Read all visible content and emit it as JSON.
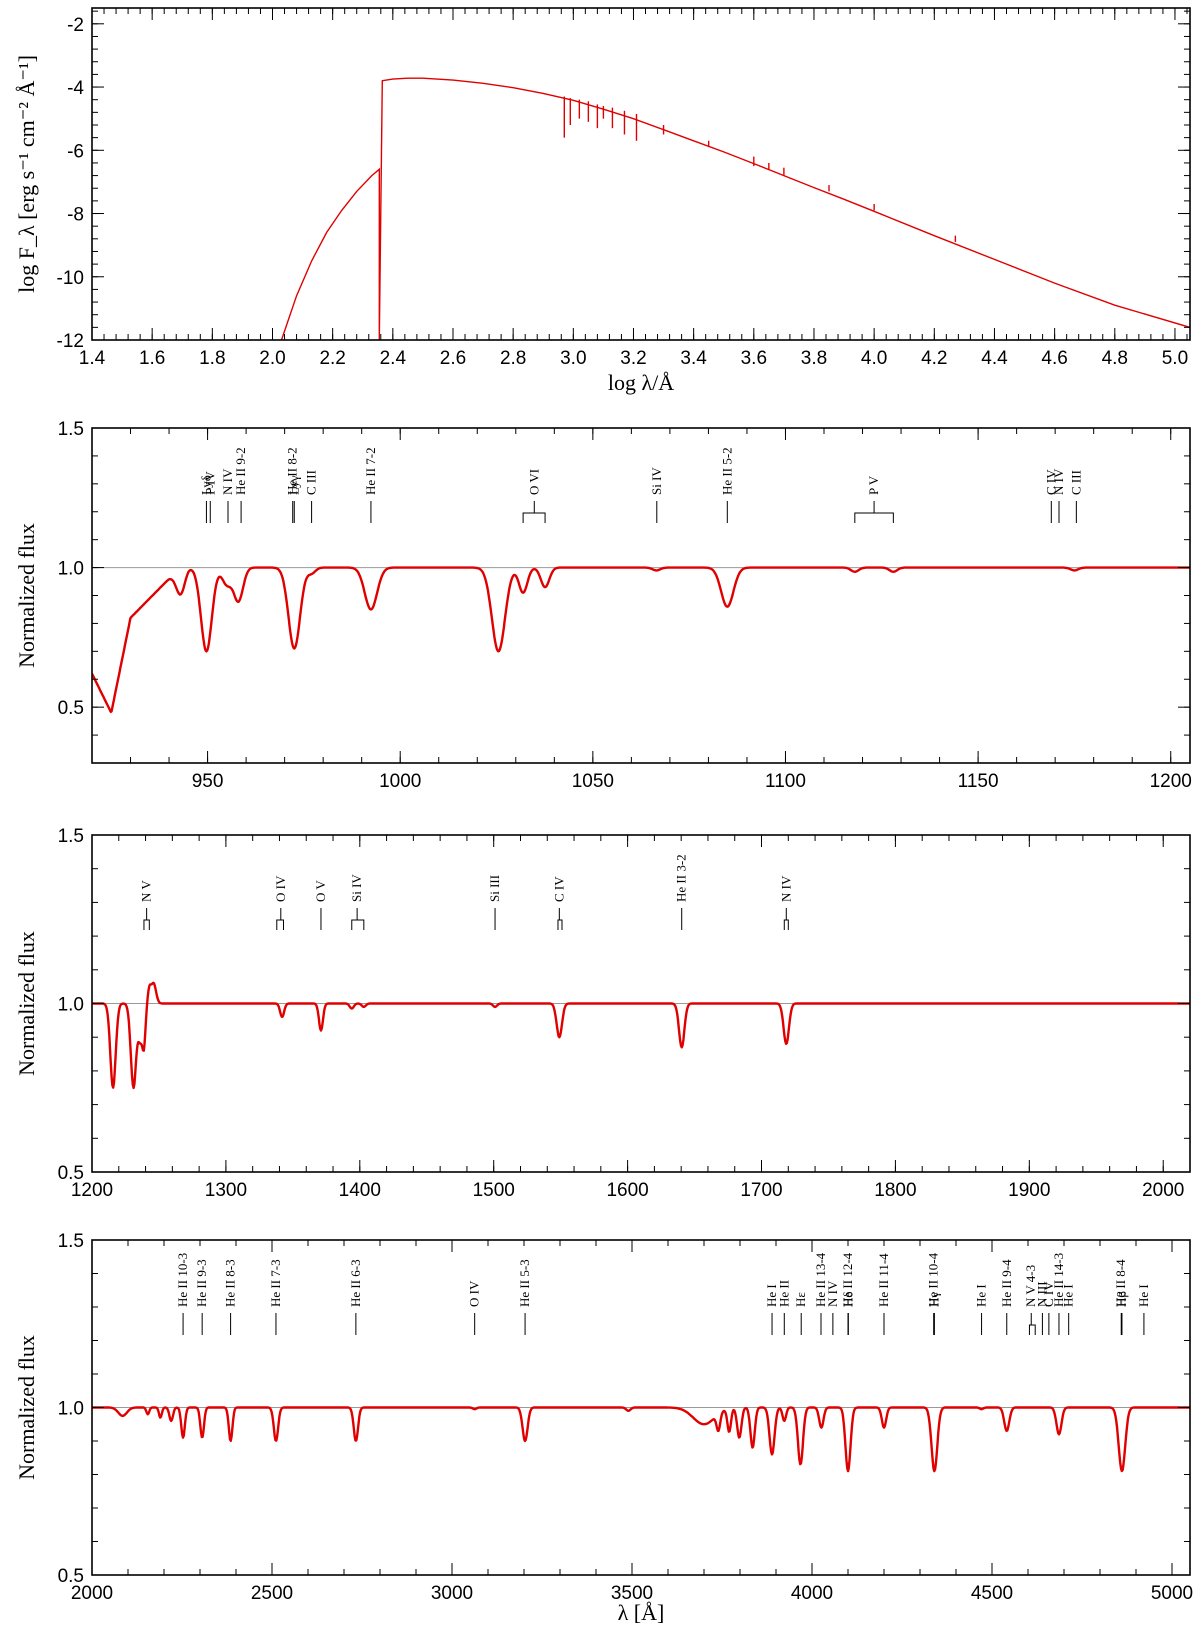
{
  "colors": {
    "model": "#e00000",
    "reference": "#999999",
    "axis": "#000000"
  },
  "chart_data": [
    {
      "type": "line",
      "xlabel": "log λ/Å",
      "ylabel": "log F_λ [erg s⁻¹ cm⁻² Å⁻¹]",
      "xlim": [
        1.4,
        5.05
      ],
      "ylim": [
        -12,
        -1.5
      ],
      "xticks": [
        "1.4",
        "1.6",
        "1.8",
        "2.0",
        "2.2",
        "2.4",
        "2.6",
        "2.8",
        "3.0",
        "3.2",
        "3.4",
        "3.6",
        "3.8",
        "4.0",
        "4.2",
        "4.4",
        "4.6",
        "4.8",
        "5.0"
      ],
      "yticks": [
        "-2",
        "-4",
        "-6",
        "-8",
        "-10",
        "-12"
      ],
      "series": [
        {
          "x": [
            2.03,
            2.08,
            2.13,
            2.18,
            2.23,
            2.28,
            2.33,
            2.355,
            2.355,
            2.365,
            2.4,
            2.45,
            2.5,
            2.6,
            2.7,
            2.8,
            2.9,
            3.0,
            3.1,
            3.2,
            3.3,
            3.4,
            3.5,
            3.6,
            3.7,
            3.8,
            3.9,
            4.0,
            4.2,
            4.4,
            4.6,
            4.8,
            5.05
          ],
          "y": [
            -12,
            -10.6,
            -9.5,
            -8.6,
            -7.9,
            -7.3,
            -6.8,
            -6.6,
            -12,
            -3.8,
            -3.75,
            -3.72,
            -3.72,
            -3.78,
            -3.88,
            -4.02,
            -4.2,
            -4.42,
            -4.7,
            -5.0,
            -5.35,
            -5.7,
            -6.05,
            -6.42,
            -6.8,
            -7.18,
            -7.55,
            -7.93,
            -8.7,
            -9.45,
            -10.2,
            -10.9,
            -11.6
          ]
        }
      ]
    },
    {
      "type": "line",
      "xlabel": "",
      "ylabel": "Normalized flux",
      "xlim": [
        920,
        1205
      ],
      "ylim": [
        0.3,
        1.5
      ],
      "xticks": [
        "950",
        "1000",
        "1050",
        "1100",
        "1150",
        "1200"
      ],
      "yticks": [
        "0.5",
        "1.0",
        "1.5"
      ],
      "reference_level": 1.0,
      "continuum_points": [
        [
          920,
          0.62
        ],
        [
          925,
          0.48
        ],
        [
          930,
          0.82
        ],
        [
          940,
          0.96
        ],
        [
          945,
          1.0
        ],
        [
          1205,
          1.0
        ]
      ],
      "absorption_lines": [
        {
          "center": 923,
          "depth": 0.2,
          "width": 1.5
        },
        {
          "center": 930,
          "depth": 0.13,
          "width": 1.4
        },
        {
          "center": 937,
          "depth": 0.22,
          "width": 1.3
        },
        {
          "center": 943,
          "depth": 0.08,
          "width": 1.1
        },
        {
          "center": 949.7,
          "depth": 0.3,
          "width": 1.4
        },
        {
          "center": 955,
          "depth": 0.06,
          "width": 1.2
        },
        {
          "center": 958,
          "depth": 0.12,
          "width": 1.2
        },
        {
          "center": 972.5,
          "depth": 0.29,
          "width": 1.5
        },
        {
          "center": 977,
          "depth": 0.02,
          "width": 1
        },
        {
          "center": 992.4,
          "depth": 0.15,
          "width": 1.6
        },
        {
          "center": 1025.5,
          "depth": 0.3,
          "width": 1.7
        },
        {
          "center": 1031.9,
          "depth": 0.09,
          "width": 1.1
        },
        {
          "center": 1037.6,
          "depth": 0.07,
          "width": 1.1
        },
        {
          "center": 1066.5,
          "depth": 0.01,
          "width": 1
        },
        {
          "center": 1084.9,
          "depth": 0.14,
          "width": 1.6
        },
        {
          "center": 1118,
          "depth": 0.015,
          "width": 1
        },
        {
          "center": 1128,
          "depth": 0.015,
          "width": 1
        },
        {
          "center": 1175,
          "depth": 0.01,
          "width": 1
        }
      ],
      "line_labels": [
        {
          "text": "Lyδ",
          "x": 949.7,
          "style": "single"
        },
        {
          "text": "P IV",
          "x": 950.7,
          "style": "single"
        },
        {
          "text": "N IV",
          "x": 955.3,
          "style": "single"
        },
        {
          "text": "He II 9-2",
          "x": 958.7,
          "style": "single"
        },
        {
          "text": "He II 8-2",
          "x": 972.1,
          "style": "single"
        },
        {
          "text": "Lyγ",
          "x": 972.5,
          "style": "single"
        },
        {
          "text": "C III",
          "x": 977,
          "style": "single"
        },
        {
          "text": "He II 7-2",
          "x": 992.4,
          "style": "single"
        },
        {
          "text": "O VI",
          "x": 1034.8,
          "style": "doublet",
          "x1": 1031.9,
          "x2": 1037.6
        },
        {
          "text": "Si IV",
          "x": 1066.6,
          "style": "single"
        },
        {
          "text": "He II 5-2",
          "x": 1084.9,
          "style": "single"
        },
        {
          "text": "P V",
          "x": 1123,
          "style": "doublet",
          "x1": 1118,
          "x2": 1128
        },
        {
          "text": "C IV",
          "x": 1169,
          "style": "single"
        },
        {
          "text": "N IV",
          "x": 1171,
          "style": "single"
        },
        {
          "text": "C III",
          "x": 1175.5,
          "style": "single"
        }
      ]
    },
    {
      "type": "line",
      "xlabel": "",
      "ylabel": "Normalized flux",
      "xlim": [
        1200,
        2020
      ],
      "ylim": [
        0.5,
        1.5
      ],
      "xticks": [
        "1200",
        "1300",
        "1400",
        "1500",
        "1600",
        "1700",
        "1800",
        "1900",
        "2000"
      ],
      "yticks": [
        "0.5",
        "1.0",
        "1.5"
      ],
      "reference_level": 1.0,
      "absorption_lines": [
        {
          "center": 1215.7,
          "depth": 0.25,
          "width": 2.0
        },
        {
          "center": 1231,
          "depth": 0.25,
          "width": 2.0
        },
        {
          "center": 1236,
          "depth": 0.1,
          "width": 1.5
        },
        {
          "center": 1238.8,
          "depth": 0.12,
          "width": 1.2
        },
        {
          "center": 1242.8,
          "depth": -0.04,
          "width": 1.2
        },
        {
          "center": 1246,
          "depth": -0.06,
          "width": 1.8
        },
        {
          "center": 1342,
          "depth": 0.04,
          "width": 1.5
        },
        {
          "center": 1371,
          "depth": 0.08,
          "width": 1.5
        },
        {
          "center": 1394,
          "depth": 0.015,
          "width": 1.5
        },
        {
          "center": 1403,
          "depth": 0.01,
          "width": 1.5
        },
        {
          "center": 1501,
          "depth": 0.01,
          "width": 1.5
        },
        {
          "center": 1549,
          "depth": 0.1,
          "width": 2.0
        },
        {
          "center": 1640.4,
          "depth": 0.13,
          "width": 2.0
        },
        {
          "center": 1718.5,
          "depth": 0.12,
          "width": 2.0
        }
      ],
      "line_labels": [
        {
          "text": "N V",
          "x": 1240.8,
          "style": "doublet",
          "x1": 1238.8,
          "x2": 1242.8
        },
        {
          "text": "O IV",
          "x": 1341,
          "style": "doublet",
          "x1": 1338,
          "x2": 1343
        },
        {
          "text": "O V",
          "x": 1371,
          "style": "single"
        },
        {
          "text": "Si IV",
          "x": 1398,
          "style": "doublet",
          "x1": 1394,
          "x2": 1403
        },
        {
          "text": "Si III",
          "x": 1501,
          "style": "single"
        },
        {
          "text": "C IV",
          "x": 1549,
          "style": "doublet",
          "x1": 1548,
          "x2": 1551
        },
        {
          "text": "He II 3-2",
          "x": 1640.4,
          "style": "single"
        },
        {
          "text": "N IV",
          "x": 1718.5,
          "style": "doublet",
          "x1": 1717,
          "x2": 1720
        }
      ]
    },
    {
      "type": "line",
      "xlabel": "λ [Å]",
      "ylabel": "Normalized flux",
      "xlim": [
        2000,
        5050
      ],
      "ylim": [
        0.5,
        1.5
      ],
      "xticks": [
        "2000",
        "2500",
        "3000",
        "3500",
        "4000",
        "4500",
        "5000"
      ],
      "yticks": [
        "0.5",
        "1.0",
        "1.5"
      ],
      "reference_level": 1.0,
      "absorption_lines": [
        {
          "center": 2085,
          "depth": 0.025,
          "width": 12
        },
        {
          "center": 2155,
          "depth": 0.02,
          "width": 4
        },
        {
          "center": 2190,
          "depth": 0.03,
          "width": 4
        },
        {
          "center": 2220,
          "depth": 0.04,
          "width": 5
        },
        {
          "center": 2253,
          "depth": 0.09,
          "width": 5
        },
        {
          "center": 2306,
          "depth": 0.09,
          "width": 5
        },
        {
          "center": 2385,
          "depth": 0.1,
          "width": 5
        },
        {
          "center": 2511,
          "depth": 0.1,
          "width": 6
        },
        {
          "center": 2733,
          "depth": 0.1,
          "width": 6
        },
        {
          "center": 3063,
          "depth": 0.005,
          "width": 5
        },
        {
          "center": 3203,
          "depth": 0.1,
          "width": 7
        },
        {
          "center": 3490,
          "depth": 0.01,
          "width": 6
        },
        {
          "center": 3700,
          "depth": 0.05,
          "width": 30
        },
        {
          "center": 3740,
          "depth": 0.05,
          "width": 5
        },
        {
          "center": 3770,
          "depth": 0.07,
          "width": 5
        },
        {
          "center": 3798,
          "depth": 0.09,
          "width": 6
        },
        {
          "center": 3835,
          "depth": 0.12,
          "width": 6
        },
        {
          "center": 3889,
          "depth": 0.14,
          "width": 7
        },
        {
          "center": 3923,
          "depth": 0.04,
          "width": 5
        },
        {
          "center": 3968,
          "depth": 0.17,
          "width": 7
        },
        {
          "center": 4026,
          "depth": 0.06,
          "width": 6
        },
        {
          "center": 4100,
          "depth": 0.19,
          "width": 7
        },
        {
          "center": 4200,
          "depth": 0.06,
          "width": 6
        },
        {
          "center": 4340,
          "depth": 0.19,
          "width": 8
        },
        {
          "center": 4471,
          "depth": 0.005,
          "width": 5
        },
        {
          "center": 4541,
          "depth": 0.07,
          "width": 7
        },
        {
          "center": 4686,
          "depth": 0.08,
          "width": 7
        },
        {
          "center": 4861,
          "depth": 0.19,
          "width": 9
        }
      ],
      "line_labels": [
        {
          "text": "He II 10-3",
          "x": 2253,
          "style": "single"
        },
        {
          "text": "He II 9-3",
          "x": 2306,
          "style": "single"
        },
        {
          "text": "He II 8-3",
          "x": 2385,
          "style": "single"
        },
        {
          "text": "He II 7-3",
          "x": 2511,
          "style": "single"
        },
        {
          "text": "He II 6-3",
          "x": 2733,
          "style": "single"
        },
        {
          "text": "O IV",
          "x": 3063,
          "style": "single"
        },
        {
          "text": "He II 5-3",
          "x": 3203,
          "style": "single"
        },
        {
          "text": "He I",
          "x": 3889,
          "style": "single"
        },
        {
          "text": "He II",
          "x": 3923,
          "style": "single"
        },
        {
          "text": "Hε",
          "x": 3970,
          "style": "single"
        },
        {
          "text": "He II 13-4",
          "x": 4025,
          "style": "single"
        },
        {
          "text": "N IV",
          "x": 4058,
          "style": "single"
        },
        {
          "text": "He II 12-4",
          "x": 4100,
          "style": "single"
        },
        {
          "text": "Hδ",
          "x": 4101,
          "style": "single"
        },
        {
          "text": "He II 11-4",
          "x": 4200,
          "style": "single"
        },
        {
          "text": "He II 10-4",
          "x": 4338,
          "style": "single"
        },
        {
          "text": "Hγ",
          "x": 4340,
          "style": "single"
        },
        {
          "text": "He I",
          "x": 4471,
          "style": "single"
        },
        {
          "text": "He II 9-4",
          "x": 4541,
          "style": "single"
        },
        {
          "text": "N V 4-3",
          "x": 4609,
          "style": "doublet",
          "x1": 4604,
          "x2": 4620
        },
        {
          "text": "N III",
          "x": 4640,
          "style": "single"
        },
        {
          "text": "C IV",
          "x": 4658,
          "style": "single"
        },
        {
          "text": "He II 14-3",
          "x": 4686,
          "style": "single"
        },
        {
          "text": "He I",
          "x": 4713,
          "style": "single"
        },
        {
          "text": "He II 8-4",
          "x": 4859,
          "style": "single"
        },
        {
          "text": "Hβ",
          "x": 4861,
          "style": "single"
        },
        {
          "text": "He I",
          "x": 4922,
          "style": "single"
        }
      ]
    }
  ]
}
